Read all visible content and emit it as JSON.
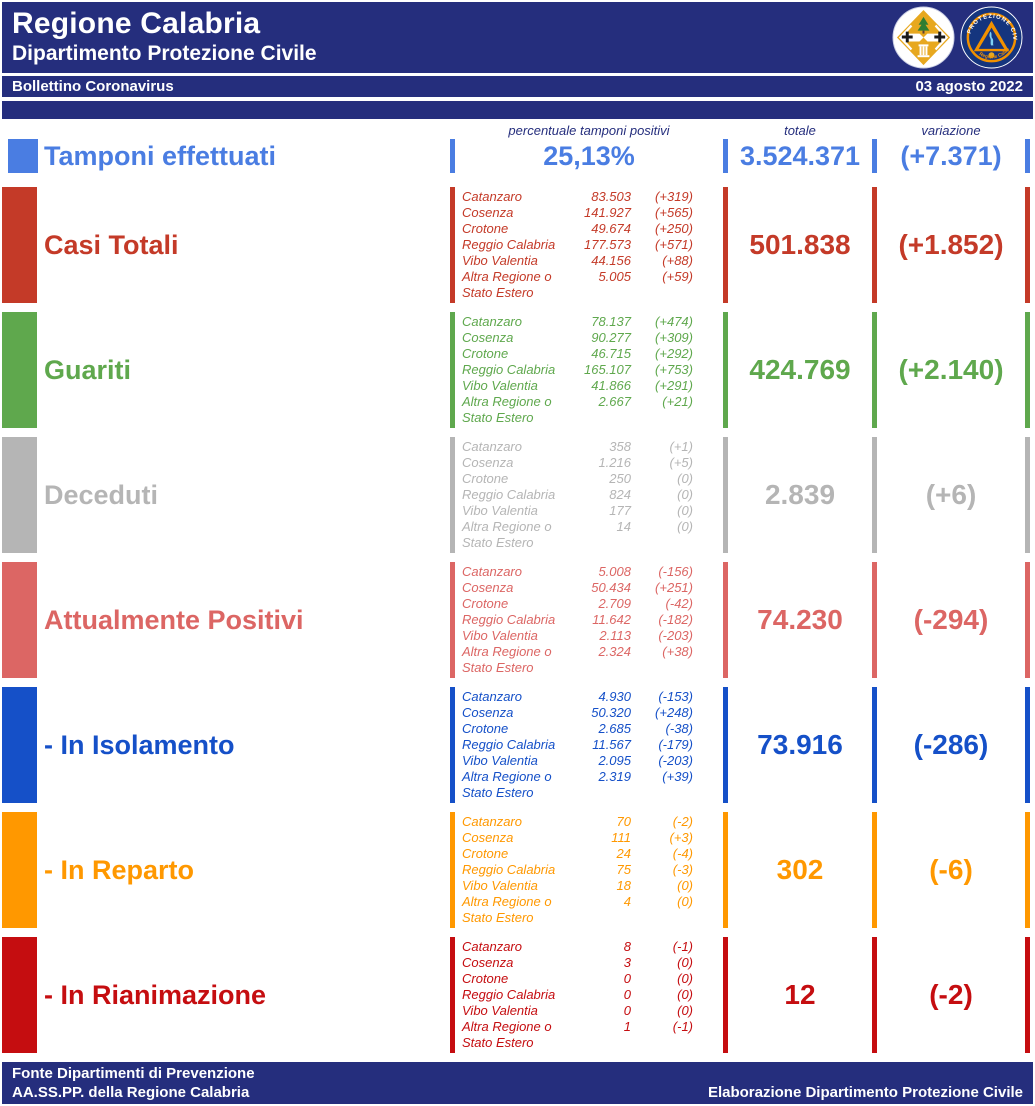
{
  "header": {
    "title": "Regione Calabria",
    "subtitle": "Dipartimento Protezione Civile",
    "bulletin_title": "Bollettino Coronavirus",
    "date": "03 agosto 2022"
  },
  "colors": {
    "navy": "#252e7d",
    "tamponi_blue": "#4a7de2",
    "casi_totali_red": "#c43a28",
    "guariti_green": "#5fa84d",
    "deceduti_gray": "#b5b5b5",
    "attualmente_salmon": "#dc6664",
    "isolamento_blue": "#1550c8",
    "reparto_orange": "#ff9800",
    "rianimazione_red": "#c50d10"
  },
  "columns": {
    "percent_header": "percentuale tamponi positivi",
    "total_header": "totale",
    "variation_header": "variazione"
  },
  "tamponi": {
    "label": "Tamponi effettuati",
    "percent": "25,13%",
    "total": "3.524.371",
    "variation": "(+7.371)",
    "color": "#4a7de2"
  },
  "sections": [
    {
      "label": "Casi Totali",
      "color": "#c43a28",
      "total": "501.838",
      "variation": "(+1.852)",
      "rows": [
        {
          "name": "Catanzaro",
          "value": "83.503",
          "delta": "(+319)"
        },
        {
          "name": "Cosenza",
          "value": "141.927",
          "delta": "(+565)"
        },
        {
          "name": "Crotone",
          "value": "49.674",
          "delta": "(+250)"
        },
        {
          "name": "Reggio Calabria",
          "value": "177.573",
          "delta": "(+571)"
        },
        {
          "name": "Vibo Valentia",
          "value": "44.156",
          "delta": "(+88)"
        },
        {
          "name": "Altra Regione o Stato Estero",
          "value": "5.005",
          "delta": "(+59)"
        }
      ]
    },
    {
      "label": "Guariti",
      "color": "#5fa84d",
      "total": "424.769",
      "variation": "(+2.140)",
      "rows": [
        {
          "name": "Catanzaro",
          "value": "78.137",
          "delta": "(+474)"
        },
        {
          "name": "Cosenza",
          "value": "90.277",
          "delta": "(+309)"
        },
        {
          "name": "Crotone",
          "value": "46.715",
          "delta": "(+292)"
        },
        {
          "name": "Reggio Calabria",
          "value": "165.107",
          "delta": "(+753)"
        },
        {
          "name": "Vibo Valentia",
          "value": "41.866",
          "delta": "(+291)"
        },
        {
          "name": "Altra Regione o Stato Estero",
          "value": "2.667",
          "delta": "(+21)"
        }
      ]
    },
    {
      "label": "Deceduti",
      "color": "#b5b5b5",
      "total": "2.839",
      "variation": "(+6)",
      "rows": [
        {
          "name": "Catanzaro",
          "value": "358",
          "delta": "(+1)"
        },
        {
          "name": "Cosenza",
          "value": "1.216",
          "delta": "(+5)"
        },
        {
          "name": "Crotone",
          "value": "250",
          "delta": "(0)"
        },
        {
          "name": "Reggio Calabria",
          "value": "824",
          "delta": "(0)"
        },
        {
          "name": "Vibo Valentia",
          "value": "177",
          "delta": "(0)"
        },
        {
          "name": "Altra Regione o Stato Estero",
          "value": "14",
          "delta": "(0)"
        }
      ]
    },
    {
      "label": "Attualmente Positivi",
      "color": "#dc6664",
      "total": "74.230",
      "variation": "(-294)",
      "rows": [
        {
          "name": "Catanzaro",
          "value": "5.008",
          "delta": "(-156)"
        },
        {
          "name": "Cosenza",
          "value": "50.434",
          "delta": "(+251)"
        },
        {
          "name": "Crotone",
          "value": "2.709",
          "delta": "(-42)"
        },
        {
          "name": "Reggio Calabria",
          "value": "11.642",
          "delta": "(-182)"
        },
        {
          "name": "Vibo Valentia",
          "value": "2.113",
          "delta": "(-203)"
        },
        {
          "name": "Altra Regione o Stato Estero",
          "value": "2.324",
          "delta": "(+38)"
        }
      ]
    },
    {
      "label": "- In Isolamento",
      "color": "#1550c8",
      "total": "73.916",
      "variation": "(-286)",
      "rows": [
        {
          "name": "Catanzaro",
          "value": "4.930",
          "delta": "(-153)"
        },
        {
          "name": "Cosenza",
          "value": "50.320",
          "delta": "(+248)"
        },
        {
          "name": "Crotone",
          "value": "2.685",
          "delta": "(-38)"
        },
        {
          "name": "Reggio Calabria",
          "value": "11.567",
          "delta": "(-179)"
        },
        {
          "name": "Vibo Valentia",
          "value": "2.095",
          "delta": "(-203)"
        },
        {
          "name": "Altra Regione o Stato Estero",
          "value": "2.319",
          "delta": "(+39)"
        }
      ]
    },
    {
      "label": "- In Reparto",
      "color": "#ff9800",
      "total": "302",
      "variation": "(-6)",
      "rows": [
        {
          "name": "Catanzaro",
          "value": "70",
          "delta": "(-2)"
        },
        {
          "name": "Cosenza",
          "value": "111",
          "delta": "(+3)"
        },
        {
          "name": "Crotone",
          "value": "24",
          "delta": "(-4)"
        },
        {
          "name": "Reggio Calabria",
          "value": "75",
          "delta": "(-3)"
        },
        {
          "name": "Vibo Valentia",
          "value": "18",
          "delta": "(0)"
        },
        {
          "name": "Altra Regione o Stato Estero",
          "value": "4",
          "delta": "(0)"
        }
      ]
    },
    {
      "label": "- In Rianimazione",
      "color": "#c50d10",
      "total": "12",
      "variation": "(-2)",
      "rows": [
        {
          "name": "Catanzaro",
          "value": "8",
          "delta": "(-1)"
        },
        {
          "name": "Cosenza",
          "value": "3",
          "delta": "(0)"
        },
        {
          "name": "Crotone",
          "value": "0",
          "delta": "(0)"
        },
        {
          "name": "Reggio Calabria",
          "value": "0",
          "delta": "(0)"
        },
        {
          "name": "Vibo Valentia",
          "value": "0",
          "delta": "(0)"
        },
        {
          "name": "Altra Regione o Stato Estero",
          "value": "1",
          "delta": "(-1)"
        }
      ]
    }
  ],
  "footer": {
    "line1": "Fonte Dipartimenti di Prevenzione",
    "line2_left": "AA.SS.PP.  della Regione Calabria",
    "line2_right": "Elaborazione Dipartimento Protezione Civile"
  }
}
